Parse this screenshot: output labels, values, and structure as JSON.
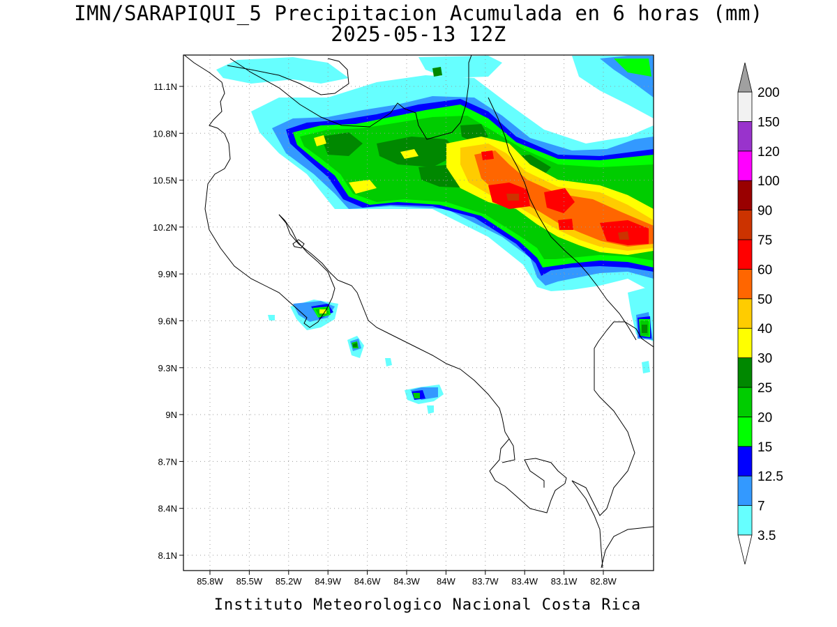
{
  "title_line1": "IMN/SARAPIQUI_5 Precipitacion Acumulada en 6 horas (mm)",
  "title_line2": "2025-05-13 12Z",
  "credit": "Instituto Meteorologico Nacional Costa Rica",
  "map": {
    "lon_ticks": [
      "85.8W",
      "85.5W",
      "85.2W",
      "84.9W",
      "84.6W",
      "84.3W",
      "84W",
      "83.7W",
      "83.4W",
      "83.1W",
      "82.8W"
    ],
    "lat_ticks": [
      "11.1N",
      "10.8N",
      "10.5N",
      "10.2N",
      "9.9N",
      "9.6N",
      "9.3N",
      "9N",
      "8.7N",
      "8.4N",
      "8.1N"
    ]
  },
  "colorbar": {
    "levels": [
      "3.5",
      "7",
      "12.5",
      "15",
      "20",
      "25",
      "30",
      "40",
      "50",
      "60",
      "75",
      "90",
      "100",
      "120",
      "150",
      "200"
    ],
    "colors": [
      "#66ffff",
      "#3399ff",
      "#0000ff",
      "#00ff00",
      "#00cc00",
      "#008800",
      "#ffff00",
      "#ffcc00",
      "#ff6600",
      "#ff0000",
      "#cc3300",
      "#990000",
      "#ff00ff",
      "#9933cc",
      "#f2f2f2",
      "#a0a0a0"
    ]
  }
}
